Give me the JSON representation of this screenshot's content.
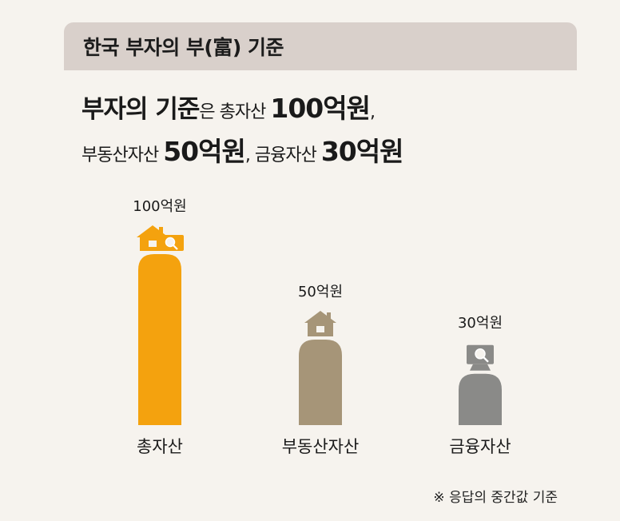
{
  "header": {
    "title": "한국 부자의 부(富) 기준"
  },
  "headline": {
    "line1": {
      "a": "부자의 기준",
      "b": "은 총자산 ",
      "c": "100억원",
      "d": ","
    },
    "line2": {
      "a": "부동산자산 ",
      "b": "50억원",
      "c": ", 금융자산 ",
      "d": "30억원"
    }
  },
  "chart_data": {
    "type": "bar",
    "categories": [
      "총자산",
      "부동산자산",
      "금융자산"
    ],
    "values": [
      100,
      50,
      30
    ],
    "data_labels": [
      "100억원",
      "50억원",
      "30억원"
    ],
    "colors": [
      "#f4a20e",
      "#a69578",
      "#8a8a88"
    ],
    "icons": [
      [
        "house-icon",
        "money-search-icon"
      ],
      [
        "house-icon"
      ],
      [
        "money-search-icon"
      ]
    ],
    "ylim": [
      0,
      100
    ],
    "grid": false,
    "legend": "none"
  },
  "footnote": "※ 응답의 중간값 기준"
}
